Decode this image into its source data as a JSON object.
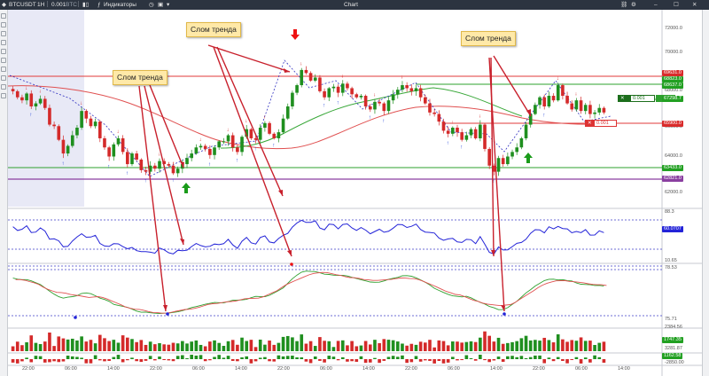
{
  "titlebar": {
    "symbol": "BTCUSDT",
    "timeframe": "1H",
    "quantity": "0.001",
    "quantity_unit": "BTC",
    "indicators_label": "Индикаторы",
    "title": "Chart"
  },
  "toolbar": {
    "timeframe_select": "2"
  },
  "annotations": [
    {
      "text": "Слом тренда"
    },
    {
      "text": "Слом тренда"
    },
    {
      "text": "Слом тренда"
    }
  ],
  "price_axis": {
    "ticks": [
      "72000.0",
      "70000.0",
      "68000.0",
      "66000.0",
      "64000.0",
      "62000.0"
    ],
    "tags": [
      {
        "text": "69631.0",
        "color": "#d92b2b"
      },
      {
        "text": "68823.0",
        "color": "#22a022"
      },
      {
        "text": "68637.0",
        "color": "#22a022"
      },
      {
        "text": "67298.7",
        "color": "#22a022"
      },
      {
        "text": "65900.0",
        "color": "#d92b2b"
      },
      {
        "text": "63433.0",
        "color": "#22a022"
      },
      {
        "text": "62821.0",
        "color": "#8a3fa0"
      }
    ]
  },
  "orders": {
    "tp": {
      "qty": "0.001",
      "label": "TP"
    },
    "pending": {
      "qty": "0.001"
    }
  },
  "oscillator1": {
    "levels": [
      "88.3",
      "60.0707",
      "10.65"
    ]
  },
  "oscillator2": {
    "levels": [
      "78.53",
      "75.71"
    ]
  },
  "volume": {
    "levels": [
      "2384.56",
      "1747.35",
      "3281.87",
      "1162.58",
      "-2850.00"
    ]
  },
  "time_axis": [
    "22:00",
    "06:00",
    "14:00",
    "22:00",
    "06:00",
    "14:00",
    "22:00",
    "06:00",
    "14:00",
    "22:00",
    "06:00",
    "14:00",
    "22:00",
    "06:00",
    "14:00"
  ],
  "chart_data": {
    "type": "candlestick",
    "title": "",
    "ylim": [
      61000,
      73500
    ],
    "candles_close": [
      68600,
      68200,
      68000,
      68450,
      67600,
      67800,
      68100,
      67500,
      66400,
      66300,
      65400,
      64500,
      65000,
      65700,
      66200,
      67300,
      66800,
      66300,
      66600,
      65500,
      64900,
      64300,
      65100,
      65500,
      64600,
      63800,
      64500,
      64100,
      63400,
      63300,
      63700,
      63500,
      64000,
      63800,
      63700,
      63200,
      63500,
      63800,
      64200,
      64500,
      64900,
      65000,
      64800,
      64400,
      64900,
      65300,
      65300,
      65700,
      64900,
      64600,
      65600,
      66100,
      65500,
      65400,
      66200,
      66500,
      65800,
      65500,
      65900,
      66800,
      67600,
      68500,
      69000,
      70000,
      69800,
      69300,
      69500,
      68600,
      68200,
      68800,
      68900,
      68500,
      69100,
      68800,
      68400,
      68200,
      68300,
      67600,
      67400,
      67900,
      67800,
      67300,
      68000,
      68400,
      68700,
      69000,
      68800,
      68600,
      68800,
      68200,
      67800,
      67200,
      67100,
      66600,
      66000,
      65800,
      66200,
      65900,
      65400,
      65700,
      66100,
      65500,
      66400,
      64800,
      63700,
      63300,
      64200,
      63800,
      64300,
      64600,
      64900,
      65500,
      66400,
      67100,
      67700,
      68200,
      67600,
      68300,
      68000,
      69000,
      68300,
      67800,
      67400,
      68000,
      67300,
      67700,
      67100,
      67200,
      67500,
      67200
    ],
    "indicator_series": [
      "moving-average-red",
      "moving-average-green"
    ]
  }
}
